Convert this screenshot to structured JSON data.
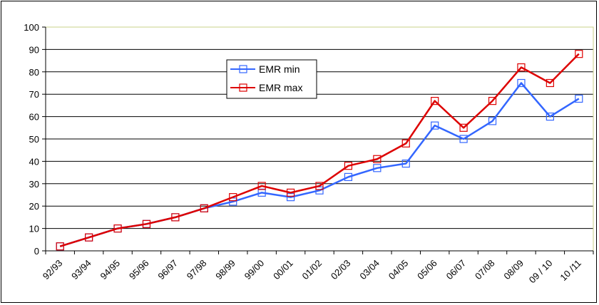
{
  "chart_data": {
    "type": "line",
    "title": "",
    "xlabel": "",
    "ylabel": "",
    "categories": [
      "92/93",
      "93/94",
      "94/95",
      "95/96",
      "96/97",
      "97/98",
      "98/99",
      "99/00",
      "00/01",
      "01/02",
      "02/03",
      "03/04",
      "04/05",
      "05/06",
      "06/07",
      "07/08",
      "08/09",
      "09 / 10",
      "10 /11"
    ],
    "ylim": [
      0,
      100
    ],
    "yticks": [
      0,
      10,
      20,
      30,
      40,
      50,
      60,
      70,
      80,
      90,
      100
    ],
    "grid": true,
    "legend_placement": "upper-center",
    "series": [
      {
        "name": "EMR min",
        "color": "#3366ff",
        "values": [
          2,
          6,
          10,
          12,
          15,
          19,
          22,
          26,
          24,
          27,
          33,
          37,
          39,
          56,
          50,
          58,
          75,
          60,
          68
        ]
      },
      {
        "name": "EMR max",
        "color": "#dd0000",
        "values": [
          2,
          6,
          10,
          12,
          15,
          19,
          24,
          29,
          26,
          29,
          38,
          41,
          48,
          67,
          55,
          67,
          82,
          75,
          88
        ]
      }
    ],
    "plot_area_color": "#ffffff",
    "plot_border_color": "#c8d08a"
  }
}
